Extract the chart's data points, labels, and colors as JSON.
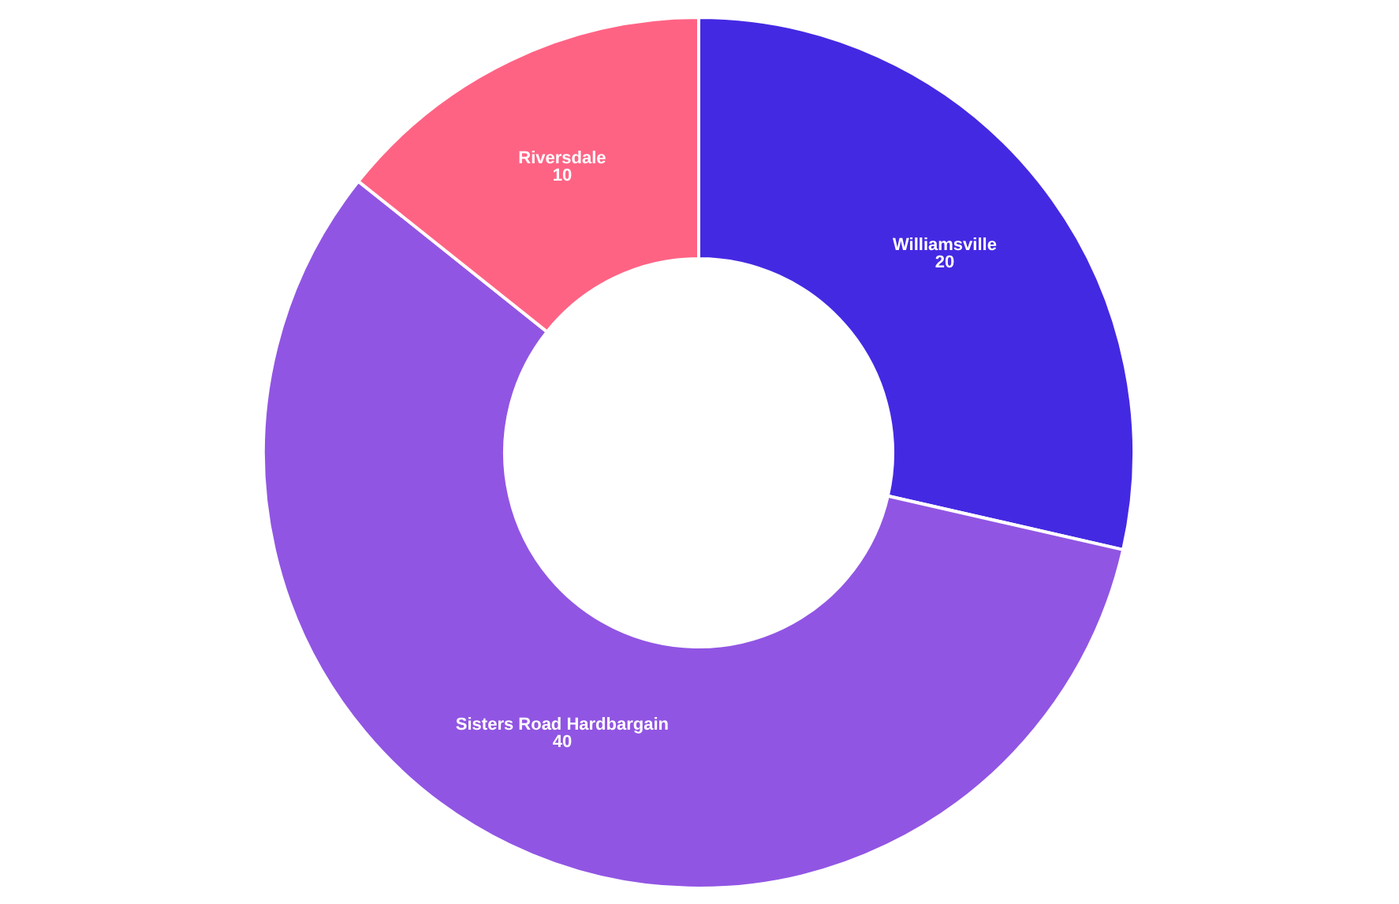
{
  "chart_data": {
    "type": "donut",
    "categories": [
      "Williamsville",
      "Sisters Road Hardbargain",
      "Riversdale"
    ],
    "values": [
      20,
      40,
      10
    ],
    "colors": [
      "#4429e3",
      "#9155e3",
      "#ff6384"
    ],
    "data_labels": true
  }
}
